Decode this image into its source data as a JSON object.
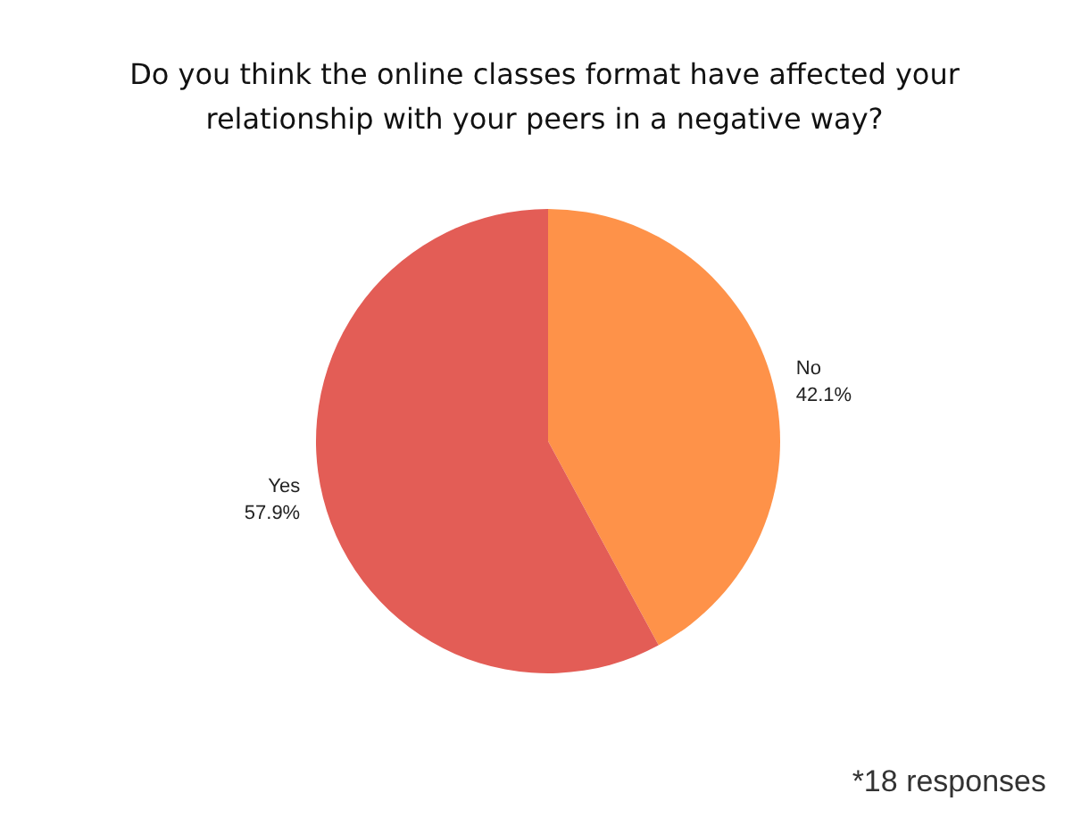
{
  "chart_data": {
    "type": "pie",
    "title": "Do you think the online classes format have affected your\nrelationship with your peers in a negative way?",
    "categories": [
      "No",
      "Yes"
    ],
    "values": [
      42.1,
      57.9
    ],
    "colors": [
      "#fe9249",
      "#e35d56"
    ],
    "value_labels": [
      "42.1%",
      "57.9%"
    ],
    "annotations": [
      "*18 responses"
    ],
    "legend": false
  }
}
